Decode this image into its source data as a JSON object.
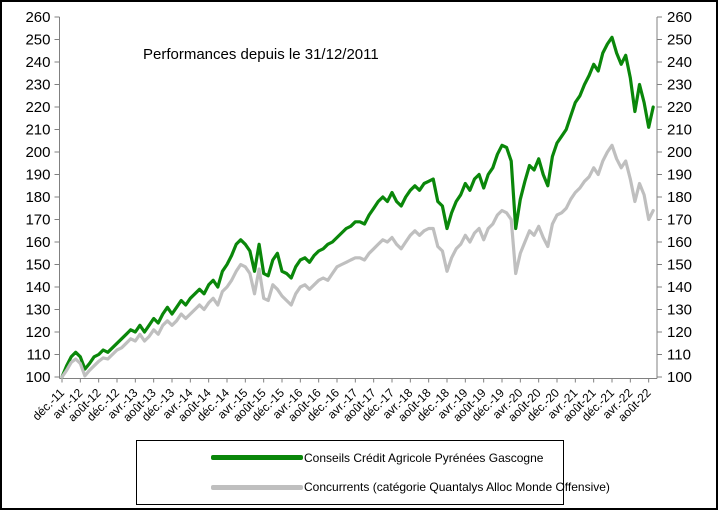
{
  "figure": {
    "background": "#ffffff",
    "border_color": "#000000"
  },
  "chart_data": {
    "type": "line",
    "title": "Performances depuis le 31/12/2011",
    "xlabel": "",
    "ylabel": "",
    "ylim": [
      100,
      260
    ],
    "y_tick_step": 10,
    "y_ticks": [
      100,
      110,
      120,
      130,
      140,
      150,
      160,
      170,
      180,
      190,
      200,
      210,
      220,
      230,
      240,
      250,
      260
    ],
    "grid": false,
    "legend_position": "bottom",
    "axis_color": "#808080",
    "text_color": "#000000",
    "x_tick_step_months": 4,
    "x_tick_labels": [
      "déc.-11",
      "avr.-12",
      "août-12",
      "déc.-12",
      "avr.-13",
      "août-13",
      "déc.-13",
      "avr.-14",
      "août-14",
      "déc.-14",
      "avr.-15",
      "août-15",
      "déc.-15",
      "avr.-16",
      "août-16",
      "déc.-16",
      "avr.-17",
      "août-17",
      "déc.-17",
      "avr.-18",
      "août-18",
      "déc.-18",
      "avr.-19",
      "août-19",
      "déc.-19",
      "avr.-20",
      "août-20",
      "déc.-20",
      "avr.-21",
      "août-21",
      "déc.-21",
      "avr.-22",
      "août-22"
    ],
    "series": [
      {
        "name": "Conseils Crédit Agricole Pyrénées Gascogne",
        "color": "#0a870a",
        "values": [
          100,
          105,
          109,
          111,
          109,
          103.5,
          106,
          109,
          110,
          112,
          111,
          113,
          115,
          117,
          119,
          121,
          120,
          123,
          120,
          123,
          126,
          124,
          128,
          131,
          128,
          131,
          134,
          132,
          135,
          137,
          139,
          137,
          141,
          143,
          140,
          147,
          150,
          154,
          159,
          161,
          159,
          156,
          147,
          159,
          146,
          145,
          152,
          155,
          147,
          146,
          144,
          149,
          152,
          153,
          151,
          154,
          156,
          157,
          159,
          160,
          162,
          164,
          166,
          167,
          169,
          169,
          168,
          172,
          175,
          178,
          180,
          178,
          182,
          178,
          176,
          180,
          183,
          185,
          183,
          186,
          187,
          188,
          178,
          176,
          166,
          173,
          178,
          181,
          186,
          183,
          188,
          190,
          184,
          190,
          193,
          199,
          203,
          202,
          196,
          166,
          179,
          187,
          194,
          192,
          197,
          190,
          185,
          198,
          204,
          207,
          210,
          216,
          222,
          225,
          230,
          234,
          239,
          236,
          244,
          248,
          251,
          244,
          239,
          243,
          233,
          218,
          230,
          222,
          211,
          220
        ]
      },
      {
        "name": "Concurrents (catégorie Quantalys Alloc Monde Offensive)",
        "color": "#bfbfbf",
        "values": [
          100,
          103,
          106.5,
          108,
          106,
          100.5,
          103,
          105,
          107,
          108.5,
          108,
          110,
          112,
          113,
          115,
          117,
          116,
          119,
          116,
          118,
          121,
          119,
          123,
          125,
          123,
          125,
          128,
          126,
          128,
          130,
          132,
          130,
          133,
          135,
          132,
          138,
          140,
          143,
          147,
          150,
          149,
          146,
          137,
          148,
          135,
          134,
          141,
          139,
          136,
          134,
          132,
          137,
          140,
          141,
          139,
          141,
          143,
          144,
          143,
          146,
          149,
          150,
          151,
          152,
          153,
          153,
          152,
          155,
          157,
          159,
          161,
          160,
          162,
          159,
          157,
          160,
          163,
          165,
          163,
          165,
          166,
          166,
          158,
          156,
          147,
          153,
          157,
          159,
          163,
          160,
          164,
          166,
          161,
          166,
          168,
          172,
          174,
          173,
          170,
          146,
          155,
          160,
          165,
          163,
          167,
          162,
          158,
          168,
          172,
          173,
          175,
          179,
          182,
          184,
          187,
          189,
          193,
          190,
          196,
          200,
          203,
          197,
          193,
          196,
          188,
          178,
          186,
          181,
          170,
          174
        ]
      }
    ]
  }
}
